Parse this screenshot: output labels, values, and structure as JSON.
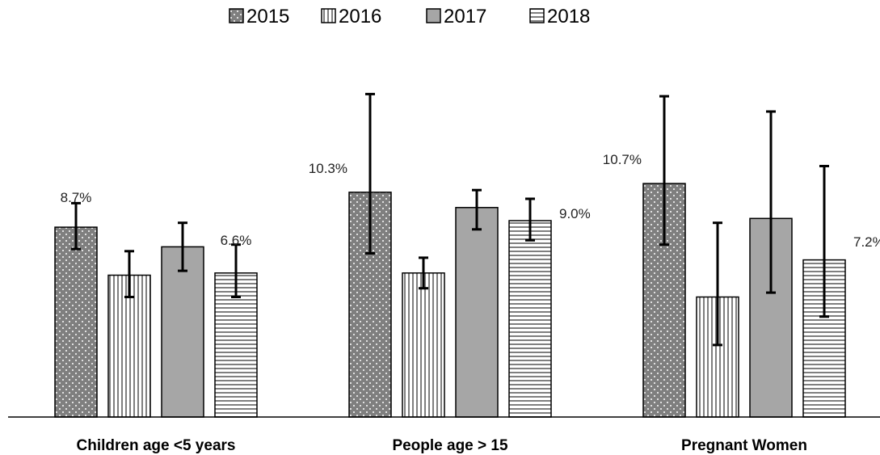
{
  "chart_data": {
    "type": "bar",
    "title": "",
    "xlabel": "",
    "ylabel": "",
    "categories": [
      "Children age <5 years",
      "People age > 15",
      "Pregnant Women"
    ],
    "ylim": [
      0,
      16
    ],
    "series": [
      {
        "name": "2015",
        "pattern": "dots",
        "values": [
          8.7,
          10.3,
          10.7
        ],
        "err_low": [
          7.7,
          7.5,
          7.9
        ],
        "err_high": [
          9.8,
          14.8,
          14.7
        ],
        "data_labels": [
          "8.7%",
          "10.3%",
          "10.7%"
        ]
      },
      {
        "name": "2016",
        "pattern": "vertical-lines",
        "values": [
          6.5,
          6.6,
          5.5
        ],
        "err_low": [
          5.5,
          5.9,
          3.3
        ],
        "err_high": [
          7.6,
          7.3,
          8.9
        ]
      },
      {
        "name": "2017",
        "pattern": "solid-gray",
        "values": [
          7.8,
          9.6,
          9.1
        ],
        "err_low": [
          6.7,
          8.6,
          5.7
        ],
        "err_high": [
          8.9,
          10.4,
          14.0
        ]
      },
      {
        "name": "2018",
        "pattern": "horizontal-lines",
        "values": [
          6.6,
          9.0,
          7.2
        ],
        "err_low": [
          5.5,
          8.1,
          4.6
        ],
        "err_high": [
          7.9,
          10.0,
          11.5
        ],
        "data_labels": [
          "6.6%",
          "9.0%",
          "7.2%"
        ]
      }
    ],
    "legend_position": "top",
    "grid": false,
    "colors": {
      "bar_dark": "#7f7f7f",
      "bar_gray": "#a6a6a6",
      "stroke": "#000000"
    }
  }
}
